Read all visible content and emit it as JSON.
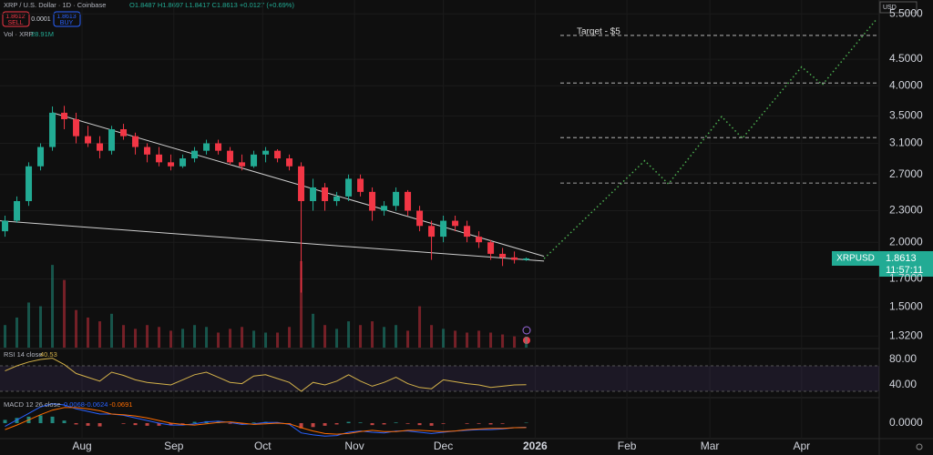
{
  "header": {
    "symbol": "XRP / U.S. Dollar · 1D · Coinbase",
    "ohlc": "O1.8487 H1.8697 L1.8417 C1.8613 +0.0127 (+0.69%)",
    "sell_price": "1.8612",
    "sell": "SELL",
    "spread": "0.0001",
    "buy_price": "1.8613",
    "buy": "BUY",
    "volume_title": "Vol · XRP",
    "volume_last": "28.91M",
    "currency": "USD",
    "price_tag_symbol": "XRPUSD",
    "price_tag_value": "1.8613",
    "countdown": "11:57:11"
  },
  "chart_data": {
    "type": "candlestick",
    "log_scale": true,
    "grid": true,
    "up_color": "#22ab94",
    "down_color": "#f23645",
    "xlim": [
      3.3,
      300.2
    ],
    "ylim": [
      1.254,
      5.85
    ],
    "xticks": [
      {
        "value": 31,
        "label": "Aug"
      },
      {
        "value": 62,
        "label": "Sep"
      },
      {
        "value": 92,
        "label": "Oct"
      },
      {
        "value": 123,
        "label": "Nov"
      },
      {
        "value": 153,
        "label": "Dec"
      },
      {
        "value": 184,
        "label": "2026"
      },
      {
        "value": 215,
        "label": "Feb"
      },
      {
        "value": 243,
        "label": "Mar"
      },
      {
        "value": 274,
        "label": "Apr"
      }
    ],
    "yticks": [
      {
        "value": 5.5,
        "label": "5.5000"
      },
      {
        "value": 4.5,
        "label": "4.5000"
      },
      {
        "value": 4,
        "label": "4.0000"
      },
      {
        "value": 3.5,
        "label": "3.5000"
      },
      {
        "value": 3.1,
        "label": "3.1000"
      },
      {
        "value": 2.7,
        "label": "2.7000"
      },
      {
        "value": 2.3,
        "label": "2.3000"
      },
      {
        "value": 2,
        "label": "2.0000"
      },
      {
        "value": 1.7,
        "label": "1.7000"
      },
      {
        "value": 1.5,
        "label": "1.5000"
      },
      {
        "value": 1.32,
        "label": "1.3200"
      }
    ],
    "x": [
      5,
      9,
      13,
      17,
      21,
      25,
      29,
      33,
      37,
      41,
      45,
      49,
      53,
      57,
      61,
      65,
      69,
      73,
      77,
      81,
      85,
      89,
      93,
      97,
      101,
      105,
      109,
      113,
      117,
      121,
      125,
      129,
      133,
      137,
      141,
      145,
      149,
      153,
      157,
      161,
      165,
      169,
      173,
      177,
      181
    ],
    "open": [
      2.1,
      2.2,
      2.4,
      2.8,
      3.05,
      3.55,
      3.45,
      3.2,
      3.1,
      3.0,
      3.3,
      3.2,
      3.05,
      2.95,
      2.85,
      2.8,
      2.9,
      3.0,
      3.1,
      3.0,
      2.85,
      2.8,
      2.95,
      3.0,
      2.9,
      2.8,
      2.4,
      2.55,
      2.4,
      2.45,
      2.65,
      2.5,
      2.3,
      2.35,
      2.5,
      2.3,
      2.15,
      2.05,
      2.2,
      2.15,
      2.05,
      2.0,
      1.9,
      1.87,
      1.8487
    ],
    "high": [
      2.25,
      2.45,
      2.85,
      3.1,
      3.65,
      3.66,
      3.55,
      3.35,
      3.2,
      3.35,
      3.38,
      3.25,
      3.1,
      3.05,
      2.95,
      2.95,
      3.05,
      3.15,
      3.15,
      3.05,
      2.95,
      3.0,
      3.05,
      3.02,
      2.95,
      2.85,
      2.65,
      2.6,
      2.5,
      2.7,
      2.7,
      2.55,
      2.4,
      2.55,
      2.52,
      2.35,
      2.2,
      2.25,
      2.25,
      2.2,
      2.1,
      2.02,
      1.95,
      1.92,
      1.8697
    ],
    "low": [
      2.05,
      2.18,
      2.35,
      2.75,
      3.0,
      3.3,
      3.1,
      3.05,
      2.9,
      2.95,
      3.15,
      2.95,
      2.85,
      2.8,
      2.75,
      2.78,
      2.85,
      2.95,
      2.95,
      2.82,
      2.75,
      2.78,
      2.85,
      2.85,
      2.75,
      1.6,
      2.3,
      2.3,
      2.35,
      2.4,
      2.45,
      2.2,
      2.25,
      2.3,
      2.25,
      2.1,
      1.85,
      2.0,
      2.1,
      2.0,
      1.95,
      1.85,
      1.8,
      1.82,
      1.8417
    ],
    "close": [
      2.2,
      2.4,
      2.8,
      3.05,
      3.55,
      3.45,
      3.2,
      3.1,
      3.0,
      3.3,
      3.2,
      3.05,
      2.95,
      2.85,
      2.8,
      2.9,
      3.0,
      3.1,
      3.0,
      2.85,
      2.8,
      2.95,
      3.0,
      2.9,
      2.8,
      2.4,
      2.55,
      2.4,
      2.45,
      2.65,
      2.5,
      2.3,
      2.35,
      2.5,
      2.3,
      2.15,
      2.05,
      2.2,
      2.15,
      2.05,
      2.0,
      1.9,
      1.87,
      1.85,
      1.8613
    ],
    "volume": [
      60,
      80,
      120,
      110,
      220,
      180,
      100,
      80,
      70,
      90,
      60,
      50,
      60,
      55,
      45,
      50,
      60,
      55,
      40,
      50,
      55,
      45,
      40,
      40,
      55,
      230,
      90,
      60,
      50,
      70,
      60,
      70,
      55,
      60,
      45,
      110,
      60,
      50,
      45,
      40,
      45,
      40,
      35,
      30,
      28.91
    ],
    "trendlines": [
      {
        "color": "#cfcfcf",
        "x": [
          21,
          187
        ],
        "values": [
          3.55,
          1.88
        ]
      },
      {
        "color": "#cfcfcf",
        "x": [
          3.3,
          187
        ],
        "values": [
          2.2,
          1.84
        ]
      }
    ],
    "projection": {
      "color": "#4caf50",
      "x": [
        187,
        221,
        229,
        247,
        254,
        274,
        281,
        299
      ],
      "values": [
        1.86,
        2.87,
        2.59,
        3.49,
        3.17,
        4.35,
        4.02,
        5.35
      ]
    },
    "levels": [
      5.0,
      4.05,
      3.18,
      2.6
    ],
    "annotation": "Target - $5",
    "rsi": {
      "title": "RSI 14 close",
      "color": "#d4b24a",
      "ylim": [
        22.9,
        94.3
      ],
      "band": [
        70,
        30
      ],
      "yticks": [
        {
          "value": 80,
          "label": "80.00"
        },
        {
          "value": 40,
          "label": "40.00"
        }
      ],
      "values": [
        62,
        70,
        76,
        80,
        82,
        72,
        58,
        52,
        46,
        60,
        55,
        48,
        44,
        42,
        40,
        48,
        56,
        60,
        52,
        44,
        42,
        54,
        56,
        50,
        44,
        30,
        44,
        40,
        46,
        56,
        46,
        38,
        44,
        52,
        42,
        36,
        34,
        48,
        45,
        42,
        40,
        36,
        38,
        40,
        40.53
      ]
    },
    "macd": {
      "title": "MACD 12 26 close",
      "ylim": [
        -0.35,
        0.35
      ],
      "yticks": [
        {
          "value": 0,
          "label": "0.0000"
        }
      ],
      "macd_color": "#2962ff",
      "signal_color": "#ff6d00",
      "histogram": [
        0.05,
        0.08,
        0.1,
        0.12,
        0.1,
        0.04,
        -0.02,
        -0.04,
        -0.05,
        0,
        -0.01,
        -0.03,
        -0.04,
        -0.04,
        -0.03,
        -0.01,
        0.02,
        0.03,
        0.02,
        -0.01,
        -0.02,
        0.01,
        0.02,
        0.01,
        -0.01,
        -0.08,
        -0.06,
        -0.04,
        -0.02,
        0.02,
        0.01,
        -0.03,
        -0.02,
        0.01,
        -0.01,
        -0.03,
        -0.04,
        -0.01,
        0,
        -0.01,
        -0.01,
        -0.02,
        -0.01,
        0,
        0.0068
      ],
      "macd": [
        -0.05,
        0.05,
        0.15,
        0.25,
        0.3,
        0.28,
        0.22,
        0.18,
        0.14,
        0.14,
        0.12,
        0.08,
        0.04,
        0,
        -0.03,
        -0.03,
        -0.01,
        0.02,
        0.03,
        0.01,
        -0.02,
        -0.01,
        0.01,
        0.01,
        -0.02,
        -0.15,
        -0.18,
        -0.2,
        -0.19,
        -0.14,
        -0.12,
        -0.14,
        -0.15,
        -0.12,
        -0.12,
        -0.14,
        -0.16,
        -0.14,
        -0.12,
        -0.11,
        -0.1,
        -0.1,
        -0.09,
        -0.07,
        -0.0624
      ],
      "signal": [
        -0.1,
        -0.03,
        0.05,
        0.13,
        0.2,
        0.24,
        0.24,
        0.22,
        0.19,
        0.14,
        0.13,
        0.11,
        0.08,
        0.04,
        0,
        -0.02,
        -0.03,
        -0.01,
        0.01,
        0.02,
        0,
        -0.02,
        -0.01,
        0,
        -0.01,
        -0.07,
        -0.12,
        -0.16,
        -0.17,
        -0.16,
        -0.13,
        -0.11,
        -0.13,
        -0.13,
        -0.11,
        -0.11,
        -0.12,
        -0.13,
        -0.12,
        -0.1,
        -0.09,
        -0.08,
        -0.08,
        -0.07,
        -0.0691
      ]
    }
  }
}
